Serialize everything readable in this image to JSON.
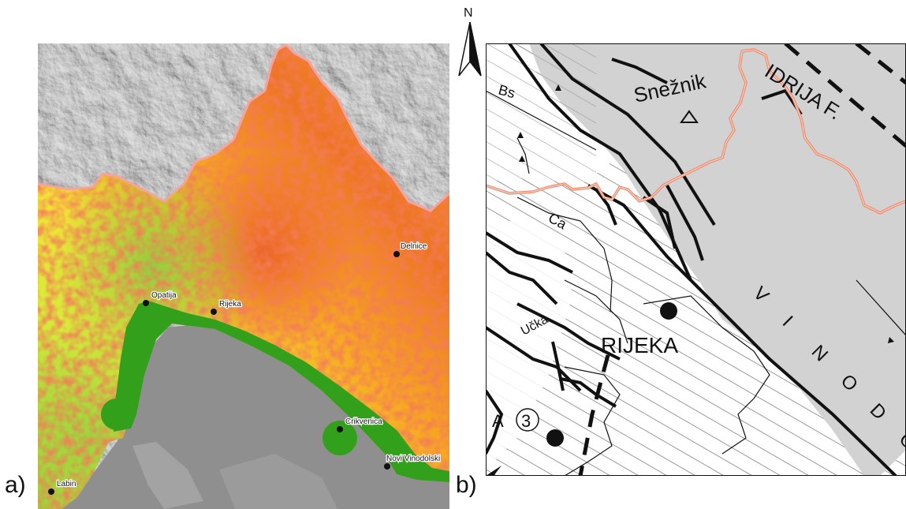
{
  "panels": {
    "a_label": "a)",
    "b_label": "b)"
  },
  "north_arrow": {
    "letter": "N"
  },
  "map_a": {
    "cities": [
      {
        "name": "Delnice"
      },
      {
        "name": "Opatija"
      },
      {
        "name": "Rijeka"
      },
      {
        "name": "Crikvenica"
      },
      {
        "name": "Novi Vinodolski"
      },
      {
        "name": "Labin"
      }
    ],
    "colors": {
      "high": "#e8462a",
      "mid": "#f7a21d",
      "low": "#e3ef3c",
      "very_low": "#8fd03c",
      "coast_buffer": "#33a01c",
      "sea": "#8f8f8f",
      "border": "#f4a4a0"
    }
  },
  "map_b": {
    "labels": {
      "sneznik": "Snežnik",
      "idrija": "IDRIJA F.",
      "bs": "Bs",
      "ca": "Ca",
      "ucka": "Učka",
      "rijeka": "RIJEKA",
      "circled_3": "3",
      "partial_a": "A",
      "vinodol": "VINODOL"
    },
    "colors": {
      "grey_zone": "#d2d2d2",
      "border": "#f08a6a",
      "hatch": "#9a9a9a"
    }
  }
}
